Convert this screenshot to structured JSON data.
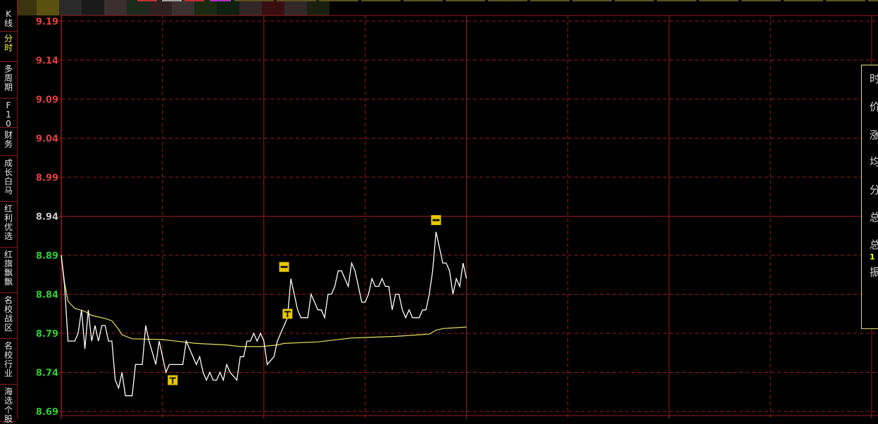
{
  "sidebar": {
    "items": [
      {
        "label": "K线",
        "active": false
      },
      {
        "label": "分时",
        "active": true
      },
      {
        "label": "多周期",
        "active": false
      },
      {
        "label": "F10",
        "active": false
      },
      {
        "label": "财务",
        "active": false
      },
      {
        "label": "成长白马",
        "active": false
      },
      {
        "label": "红利优选",
        "active": false
      },
      {
        "label": "红旗飘飘",
        "active": false
      },
      {
        "label": "名校战区",
        "active": false
      },
      {
        "label": "名校行业",
        "active": false
      },
      {
        "label": "海选个股",
        "active": false
      }
    ]
  },
  "popup": {
    "rows": [
      "时",
      "价",
      "涨",
      "均",
      "分",
      "总",
      "总",
      "1",
      "振"
    ]
  },
  "colors": {
    "up": "#e04040",
    "down": "#33cc33",
    "flat": "#c8c8c8",
    "grid": "#9b1c1c",
    "price_line": "#ffffff",
    "avg_line": "#e8e060",
    "marker": "#e8c800",
    "active_tab": "#ffff33"
  },
  "chart_data": {
    "type": "line",
    "prev_close": 8.94,
    "ylim": [
      8.69,
      9.19
    ],
    "xlim_minutes": [
      0,
      240
    ],
    "yticks": [
      "9.19",
      "9.14",
      "9.09",
      "9.04",
      "8.99",
      "8.94",
      "8.89",
      "8.84",
      "8.79",
      "8.74",
      "8.69"
    ],
    "grid": true,
    "series": [
      {
        "role": "price",
        "points": [
          [
            0,
            8.89
          ],
          [
            1,
            8.85
          ],
          [
            2,
            8.78
          ],
          [
            4,
            8.78
          ],
          [
            5,
            8.79
          ],
          [
            6,
            8.82
          ],
          [
            7,
            8.77
          ],
          [
            8,
            8.82
          ],
          [
            9,
            8.78
          ],
          [
            10,
            8.8
          ],
          [
            11,
            8.78
          ],
          [
            12,
            8.8
          ],
          [
            13,
            8.8
          ],
          [
            14,
            8.78
          ],
          [
            15,
            8.78
          ],
          [
            16,
            8.73
          ],
          [
            17,
            8.72
          ],
          [
            18,
            8.74
          ],
          [
            19,
            8.71
          ],
          [
            20,
            8.71
          ],
          [
            21,
            8.71
          ],
          [
            22,
            8.75
          ],
          [
            23,
            8.75
          ],
          [
            24,
            8.75
          ],
          [
            25,
            8.8
          ],
          [
            26,
            8.78
          ],
          [
            28,
            8.75
          ],
          [
            29,
            8.78
          ],
          [
            31,
            8.74
          ],
          [
            32,
            8.75
          ],
          [
            35,
            8.75
          ],
          [
            36,
            8.75
          ],
          [
            37,
            8.78
          ],
          [
            39,
            8.76
          ],
          [
            40,
            8.75
          ],
          [
            41,
            8.76
          ],
          [
            42,
            8.74
          ],
          [
            43,
            8.73
          ],
          [
            44,
            8.74
          ],
          [
            45,
            8.73
          ],
          [
            46,
            8.73
          ],
          [
            47,
            8.74
          ],
          [
            48,
            8.73
          ],
          [
            49,
            8.75
          ],
          [
            50,
            8.74
          ],
          [
            52,
            8.73
          ],
          [
            53,
            8.76
          ],
          [
            54,
            8.76
          ],
          [
            55,
            8.78
          ],
          [
            56,
            8.78
          ],
          [
            57,
            8.79
          ],
          [
            58,
            8.78
          ],
          [
            59,
            8.79
          ],
          [
            60,
            8.78
          ],
          [
            61,
            8.75
          ],
          [
            63,
            8.76
          ],
          [
            64,
            8.78
          ],
          [
            65,
            8.79
          ],
          [
            66,
            8.8
          ],
          [
            67,
            8.81
          ],
          [
            68,
            8.86
          ],
          [
            69,
            8.84
          ],
          [
            70,
            8.82
          ],
          [
            71,
            8.81
          ],
          [
            73,
            8.81
          ],
          [
            74,
            8.84
          ],
          [
            75,
            8.83
          ],
          [
            76,
            8.82
          ],
          [
            77,
            8.82
          ],
          [
            78,
            8.81
          ],
          [
            79,
            8.84
          ],
          [
            80,
            8.84
          ],
          [
            81,
            8.85
          ],
          [
            82,
            8.87
          ],
          [
            83,
            8.87
          ],
          [
            84,
            8.86
          ],
          [
            85,
            8.85
          ],
          [
            86,
            8.88
          ],
          [
            87,
            8.87
          ],
          [
            88,
            8.85
          ],
          [
            89,
            8.83
          ],
          [
            90,
            8.83
          ],
          [
            91,
            8.84
          ],
          [
            92,
            8.86
          ],
          [
            93,
            8.85
          ],
          [
            94,
            8.85
          ],
          [
            95,
            8.86
          ],
          [
            96,
            8.85
          ],
          [
            97,
            8.85
          ],
          [
            98,
            8.82
          ],
          [
            99,
            8.84
          ],
          [
            100,
            8.84
          ],
          [
            101,
            8.82
          ],
          [
            102,
            8.81
          ],
          [
            103,
            8.82
          ],
          [
            104,
            8.81
          ],
          [
            106,
            8.81
          ],
          [
            107,
            8.82
          ],
          [
            108,
            8.82
          ],
          [
            109,
            8.84
          ],
          [
            110,
            8.87
          ],
          [
            111,
            8.92
          ],
          [
            112,
            8.9
          ],
          [
            113,
            8.88
          ],
          [
            114,
            8.88
          ],
          [
            115,
            8.87
          ],
          [
            116,
            8.84
          ],
          [
            117,
            8.86
          ],
          [
            118,
            8.85
          ],
          [
            119,
            8.88
          ],
          [
            120,
            8.86
          ]
        ]
      },
      {
        "role": "average",
        "points": [
          [
            0,
            8.89
          ],
          [
            1,
            8.854
          ],
          [
            2,
            8.831
          ],
          [
            4,
            8.822
          ],
          [
            7,
            8.818
          ],
          [
            9,
            8.813
          ],
          [
            13,
            8.809
          ],
          [
            15,
            8.806
          ],
          [
            17,
            8.795
          ],
          [
            18,
            8.788
          ],
          [
            21,
            8.783
          ],
          [
            30,
            8.782
          ],
          [
            40,
            8.777
          ],
          [
            49,
            8.775
          ],
          [
            53,
            8.773
          ],
          [
            59,
            8.773
          ],
          [
            64,
            8.775
          ],
          [
            66,
            8.777
          ],
          [
            76,
            8.779
          ],
          [
            86,
            8.784
          ],
          [
            99,
            8.786
          ],
          [
            109,
            8.789
          ],
          [
            111,
            8.794
          ],
          [
            113,
            8.796
          ],
          [
            120,
            8.798
          ]
        ]
      }
    ],
    "markers": [
      {
        "symbol": "T",
        "minute": 33,
        "price": 8.73
      },
      {
        "symbol": "=",
        "minute": 66,
        "price": 8.875
      },
      {
        "symbol": "T",
        "minute": 67,
        "price": 8.815
      },
      {
        "symbol": "=",
        "minute": 111,
        "price": 8.935
      }
    ]
  }
}
